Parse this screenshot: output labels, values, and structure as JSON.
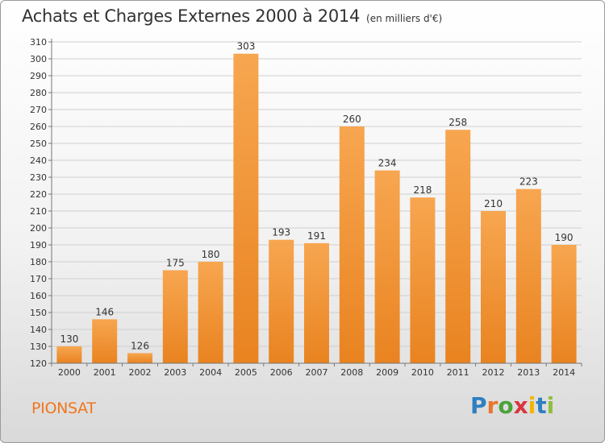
{
  "title": "Achats et Charges Externes 2000 à 2014",
  "subtitle": "(en milliers d'€)",
  "commune": "PIONSAT",
  "logo": {
    "text": "Proxiti",
    "letters": [
      {
        "ch": "P",
        "color": "#2f7fc1"
      },
      {
        "ch": "r",
        "color": "#e8762b"
      },
      {
        "ch": "o",
        "color": "#4aa23c"
      },
      {
        "ch": "x",
        "color": "#d9363e"
      },
      {
        "ch": "i",
        "color": "#f2b500"
      },
      {
        "ch": "t",
        "color": "#2f7fc1"
      },
      {
        "ch": "i",
        "color": "#8cbf3f"
      }
    ]
  },
  "chart_data": {
    "type": "bar",
    "categories": [
      "2000",
      "2001",
      "2002",
      "2003",
      "2004",
      "2005",
      "2006",
      "2007",
      "2008",
      "2009",
      "2010",
      "2011",
      "2012",
      "2013",
      "2014"
    ],
    "values": [
      130,
      146,
      126,
      175,
      180,
      303,
      193,
      191,
      260,
      234,
      218,
      258,
      210,
      223,
      190
    ],
    "ylim": [
      120,
      310
    ],
    "ytick_step": 10,
    "grid": true,
    "bar_color_light": "#f7a650",
    "bar_color_dark": "#ea8a2c",
    "xlabel": "",
    "ylabel": ""
  }
}
